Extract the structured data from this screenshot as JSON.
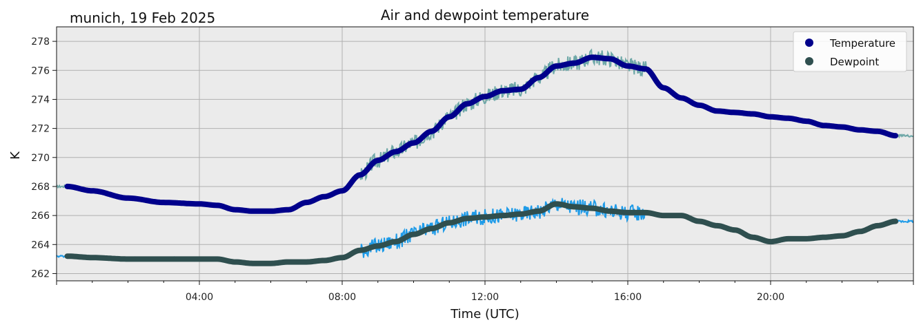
{
  "chart_data": {
    "type": "line",
    "title": "Air and dewpoint temperature",
    "subtitle": "munich, 19 Feb 2025",
    "xlabel": "Time (UTC)",
    "ylabel": "K",
    "xlim_hours": [
      0,
      24
    ],
    "ylim": [
      261.5,
      279
    ],
    "x_ticks": [
      {
        "hour": 4,
        "label": "04:00"
      },
      {
        "hour": 8,
        "label": "08:00"
      },
      {
        "hour": 12,
        "label": "12:00"
      },
      {
        "hour": 16,
        "label": "16:00"
      },
      {
        "hour": 20,
        "label": "20:00"
      }
    ],
    "y_ticks": [
      262,
      264,
      266,
      268,
      270,
      272,
      274,
      276,
      278
    ],
    "grid": true,
    "legend": {
      "position": "top-right"
    },
    "colors": {
      "background": "#ebebeb",
      "temperature_smooth": "#00008b",
      "temperature_raw": "#6fa8a8",
      "dewpoint_smooth": "#2f4f4f",
      "dewpoint_raw": "#1e9be8",
      "grid": "#b0b0b0"
    },
    "series": [
      {
        "name": "Temperature",
        "key": "temperature",
        "x": [
          0.3,
          1,
          2,
          3,
          4,
          4.5,
          5,
          5.5,
          6,
          6.5,
          7,
          7.5,
          8,
          8.5,
          9,
          9.5,
          10,
          10.5,
          11,
          11.5,
          12,
          12.5,
          13,
          13.5,
          14,
          14.5,
          15,
          15.5,
          16,
          16.5,
          17,
          17.5,
          18,
          18.5,
          19,
          19.5,
          20,
          20.5,
          21,
          21.5,
          22,
          22.5,
          23,
          23.5
        ],
        "values": [
          268.0,
          267.7,
          267.2,
          266.9,
          266.8,
          266.7,
          266.4,
          266.3,
          266.3,
          266.4,
          266.9,
          267.3,
          267.7,
          268.8,
          269.8,
          270.4,
          271.0,
          271.8,
          272.8,
          273.7,
          274.2,
          274.6,
          274.7,
          275.5,
          276.3,
          276.5,
          276.9,
          276.8,
          276.3,
          276.1,
          274.8,
          274.1,
          273.6,
          273.2,
          273.1,
          273.0,
          272.8,
          272.7,
          272.5,
          272.2,
          272.1,
          271.9,
          271.8,
          271.5
        ]
      },
      {
        "name": "Dewpoint",
        "key": "dewpoint",
        "x": [
          0.3,
          1,
          2,
          3,
          4,
          4.5,
          5,
          5.5,
          6,
          6.5,
          7,
          7.5,
          8,
          8.5,
          9,
          9.5,
          10,
          10.5,
          11,
          11.5,
          12,
          12.5,
          13,
          13.5,
          14,
          14.5,
          15,
          15.5,
          16,
          16.5,
          17,
          17.5,
          18,
          18.5,
          19,
          19.5,
          20,
          20.5,
          21,
          21.5,
          22,
          22.5,
          23,
          23.5
        ],
        "values": [
          263.2,
          263.1,
          263.0,
          263.0,
          263.0,
          263.0,
          262.8,
          262.7,
          262.7,
          262.8,
          262.8,
          262.9,
          263.1,
          263.6,
          263.9,
          264.2,
          264.7,
          265.1,
          265.5,
          265.8,
          265.9,
          266.0,
          266.1,
          266.3,
          266.8,
          266.6,
          266.5,
          266.3,
          266.2,
          266.2,
          266.0,
          266.0,
          265.6,
          265.3,
          265.0,
          264.5,
          264.2,
          264.4,
          264.4,
          264.5,
          264.6,
          264.9,
          265.3,
          265.6
        ]
      }
    ]
  }
}
